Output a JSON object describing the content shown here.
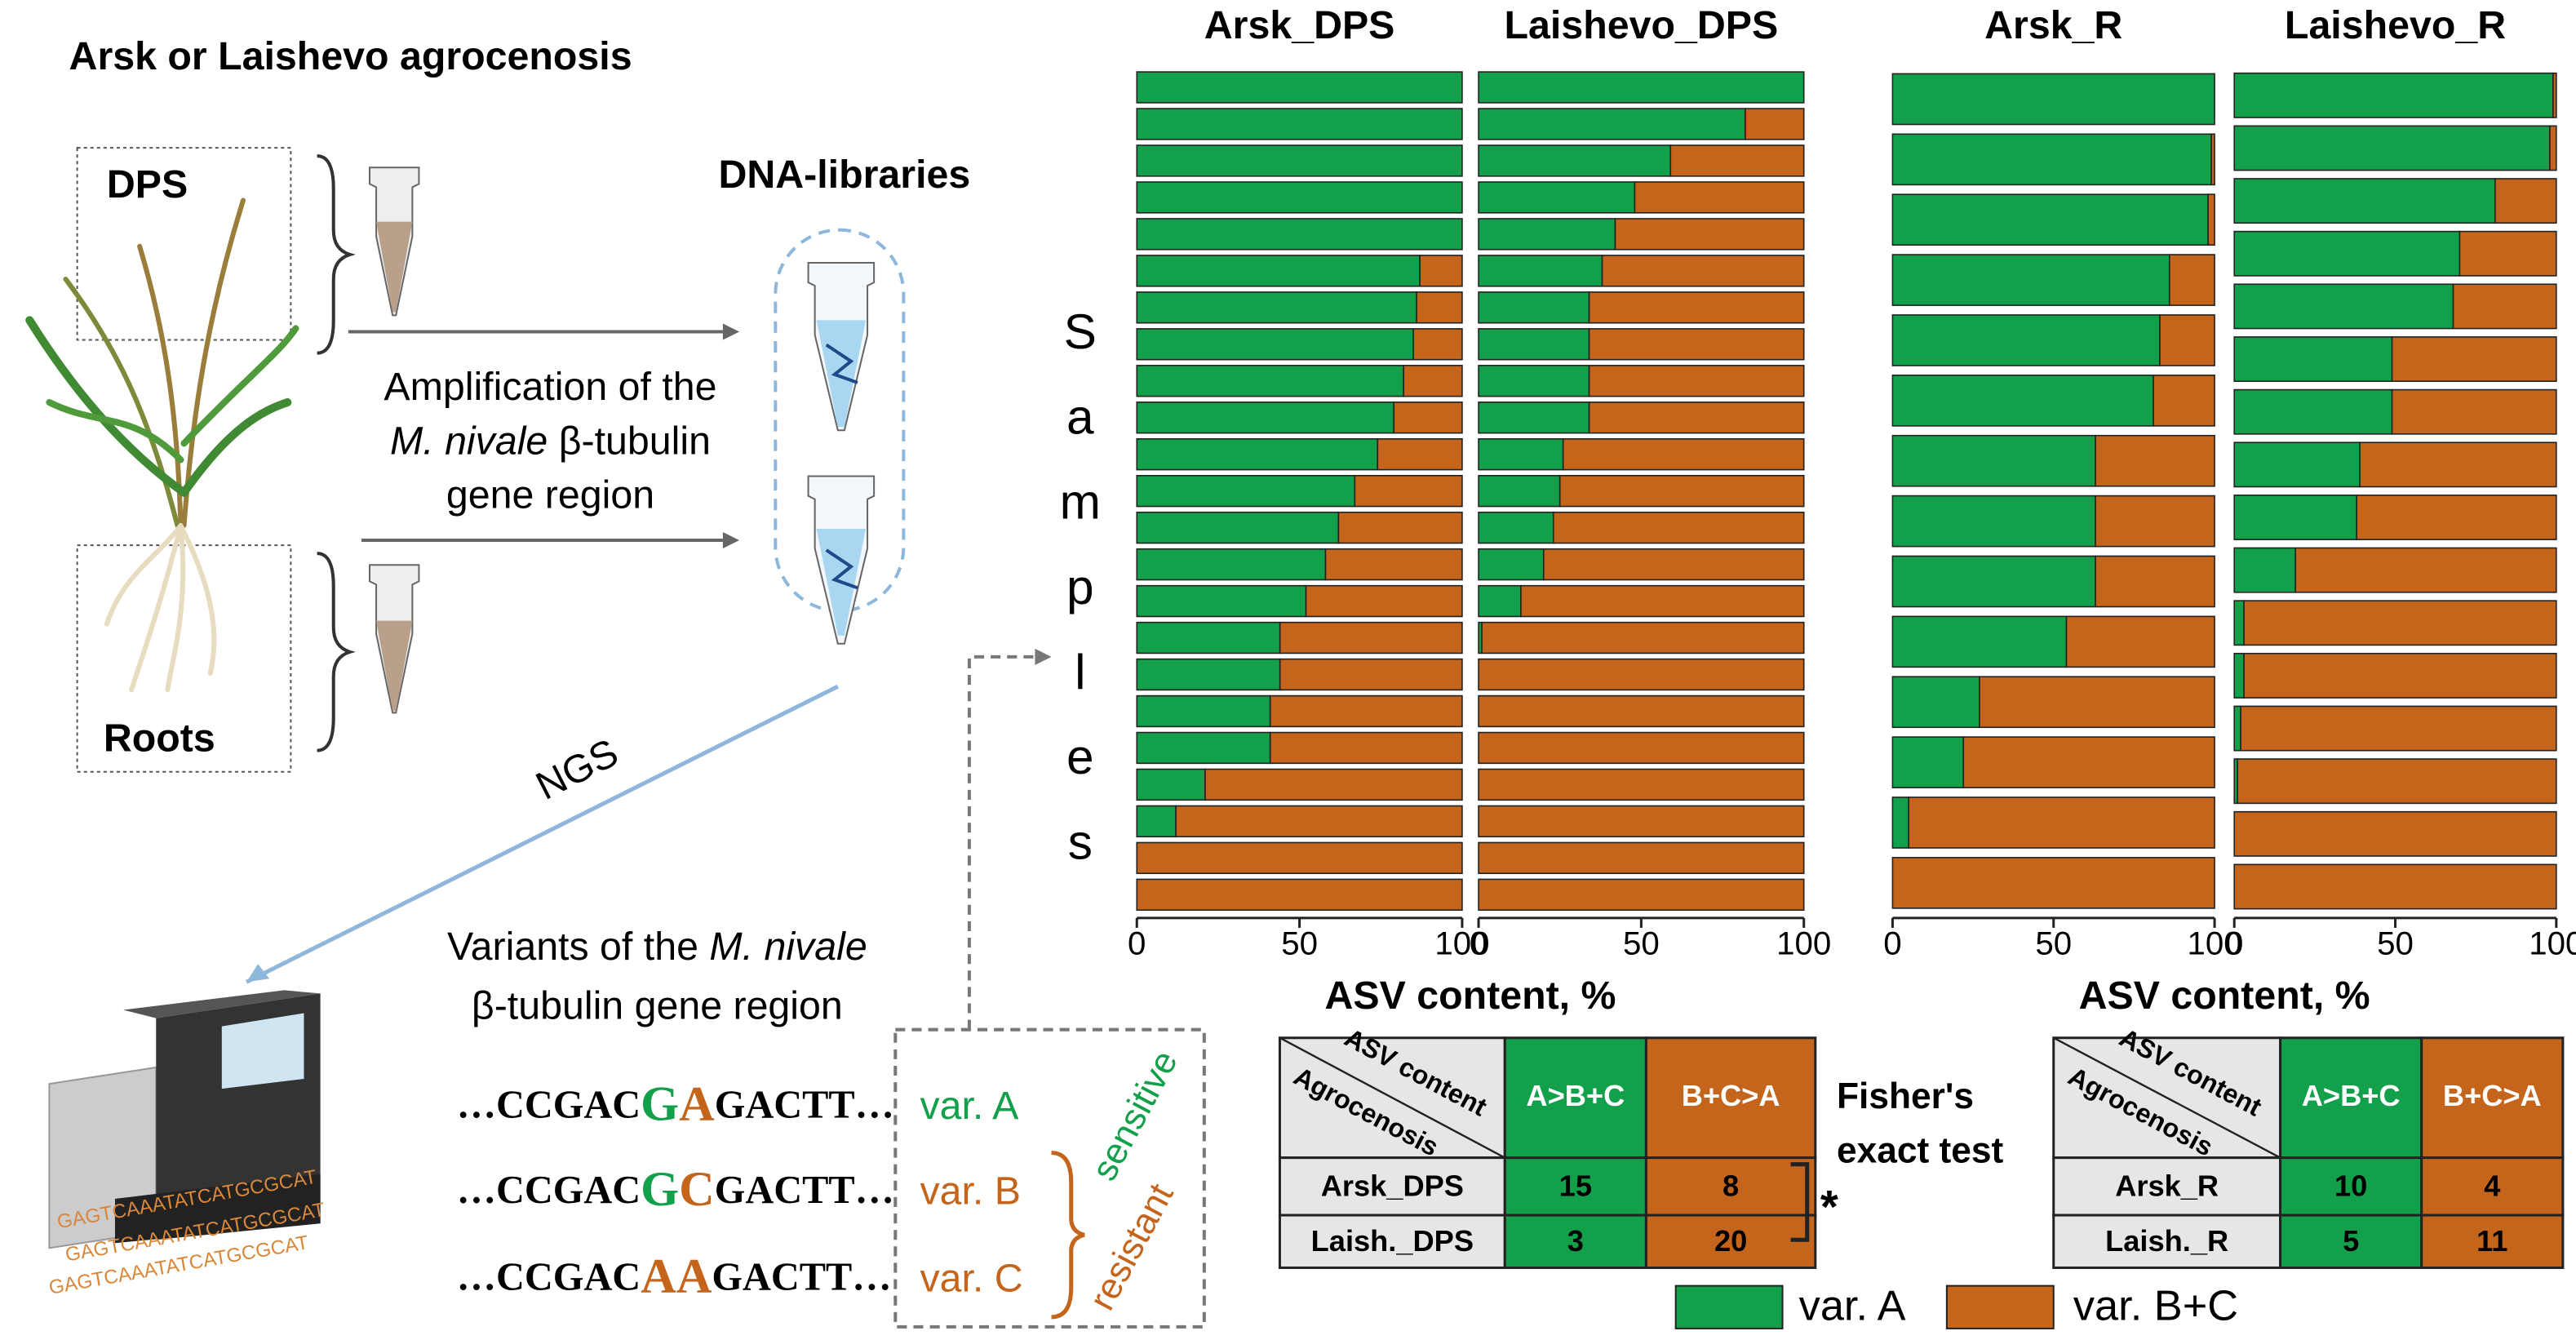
{
  "chart_data": [
    {
      "type": "stacked_barh",
      "title": "Arsk_DPS",
      "xlabel": "ASV content, %",
      "xlim": [
        0,
        100
      ],
      "xticks": [
        0,
        50,
        100
      ],
      "series": [
        {
          "name": "var. A",
          "color": "#12a04a",
          "values": [
            100,
            100,
            100,
            100,
            100,
            87,
            86,
            85,
            82,
            79,
            74,
            67,
            62,
            58,
            52,
            44,
            44,
            41,
            41,
            21,
            12,
            0,
            0
          ]
        },
        {
          "name": "var. B+C",
          "color": "#c5651c",
          "values": [
            0,
            0,
            0,
            0,
            0,
            13,
            14,
            15,
            18,
            21,
            26,
            33,
            38,
            42,
            48,
            56,
            56,
            59,
            59,
            79,
            88,
            100,
            100
          ]
        }
      ]
    },
    {
      "type": "stacked_barh",
      "title": "Laishevo_DPS",
      "xlim": [
        0,
        100
      ],
      "xticks": [
        0,
        50,
        100
      ],
      "series": [
        {
          "name": "var. A",
          "color": "#12a04a",
          "values": [
            100,
            82,
            59,
            48,
            42,
            38,
            34,
            34,
            34,
            34,
            26,
            25,
            23,
            20,
            13,
            1,
            0,
            0,
            0,
            0,
            0,
            0,
            0
          ]
        },
        {
          "name": "var. B+C",
          "color": "#c5651c",
          "values": [
            0,
            18,
            41,
            52,
            58,
            62,
            66,
            66,
            66,
            66,
            74,
            75,
            77,
            80,
            87,
            99,
            100,
            100,
            100,
            100,
            100,
            100,
            100
          ]
        }
      ]
    },
    {
      "type": "stacked_barh",
      "title": "Arsk_R",
      "xlabel": "ASV content, %",
      "xlim": [
        0,
        100
      ],
      "xticks": [
        0,
        50,
        100
      ],
      "series": [
        {
          "name": "var. A",
          "color": "#12a04a",
          "values": [
            100,
            99,
            98,
            86,
            83,
            81,
            63,
            63,
            63,
            54,
            27,
            22,
            5,
            0
          ]
        },
        {
          "name": "var. B+C",
          "color": "#c5651c",
          "values": [
            0,
            1,
            2,
            14,
            17,
            19,
            37,
            37,
            37,
            46,
            73,
            78,
            95,
            100
          ]
        }
      ]
    },
    {
      "type": "stacked_barh",
      "title": "Laishevo_R",
      "xlim": [
        0,
        100
      ],
      "xticks": [
        0,
        50,
        100
      ],
      "series": [
        {
          "name": "var. A",
          "color": "#12a04a",
          "values": [
            99,
            98,
            81,
            70,
            68,
            49,
            49,
            39,
            38,
            19,
            3,
            3,
            2,
            1,
            0,
            0
          ]
        },
        {
          "name": "var. B+C",
          "color": "#c5651c",
          "values": [
            1,
            2,
            19,
            30,
            32,
            51,
            51,
            61,
            62,
            81,
            97,
            97,
            98,
            99,
            100,
            100
          ]
        }
      ]
    }
  ],
  "ylabel": "Samples",
  "tables": [
    {
      "corner": [
        "ASV content",
        "Agrocenosis"
      ],
      "columns": [
        "A>B+C",
        "B+C>A"
      ],
      "rows": [
        [
          "Arsk_DPS",
          15,
          8
        ],
        [
          "Laish._DPS",
          3,
          20
        ]
      ]
    },
    {
      "corner": [
        "ASV content",
        "Agrocenosis"
      ],
      "columns": [
        "A>B+C",
        "B+C>A"
      ],
      "rows": [
        [
          "Arsk_R",
          10,
          4
        ],
        [
          "Laish._R",
          5,
          11
        ]
      ]
    }
  ],
  "fisher": {
    "lines": [
      "Fisher's",
      "exact test"
    ],
    "significance": "*"
  },
  "diagram": {
    "title": "Arsk or Laishevo agrocenosis",
    "dps": "DPS",
    "roots": "Roots",
    "libraries": "DNA-libraries",
    "amplification": [
      "Amplification of the",
      "M. nivale",
      "β-tubulin",
      "gene region"
    ],
    "ngs": "NGS",
    "variants_title": [
      "Variants of the",
      "M. nivale",
      "β-tubulin gene region"
    ],
    "sequences": [
      {
        "prefix": "…CCGAC",
        "letters": [
          "G",
          "A"
        ],
        "suffix": "GACTT…",
        "label": "var. A"
      },
      {
        "prefix": "…CCGAC",
        "letters": [
          "G",
          "C"
        ],
        "suffix": "GACTT…",
        "label": "var. B"
      },
      {
        "prefix": "…CCGAC",
        "letters": [
          "A",
          "A"
        ],
        "suffix": "GACTT…",
        "label": "var. C"
      }
    ],
    "sensitive": "sensitive",
    "resistant": "resistant",
    "machine_reads": [
      "GAGTCAAATATCATGCGCAT",
      "GAGTCAAATATCATGCGCAT",
      "GAGTCAAATATCATGCGCAT"
    ]
  }
}
